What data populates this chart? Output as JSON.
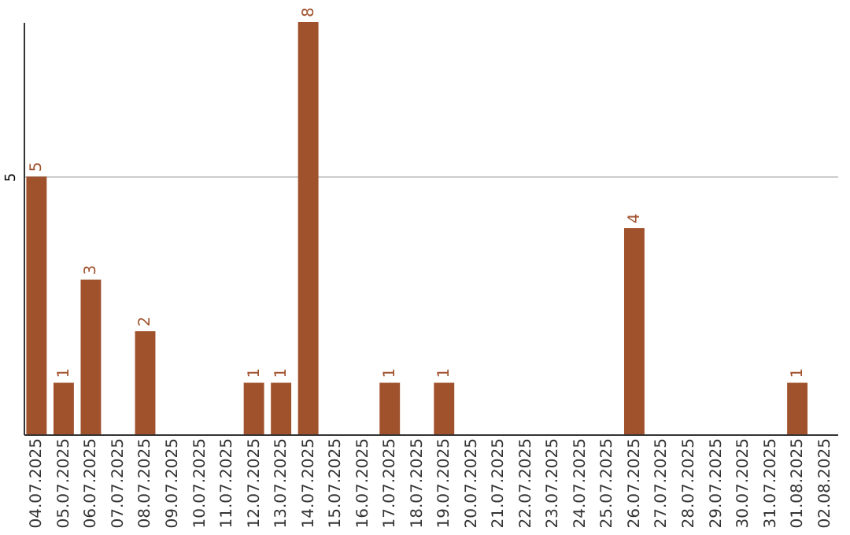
{
  "chart_data": {
    "type": "bar",
    "categories": [
      "04.07.2025",
      "05.07.2025",
      "06.07.2025",
      "07.07.2025",
      "08.07.2025",
      "09.07.2025",
      "10.07.2025",
      "11.07.2025",
      "12.07.2025",
      "13.07.2025",
      "14.07.2025",
      "15.07.2025",
      "16.07.2025",
      "17.07.2025",
      "18.07.2025",
      "19.07.2025",
      "20.07.2025",
      "21.07.2025",
      "22.07.2025",
      "23.07.2025",
      "24.07.2025",
      "25.07.2025",
      "26.07.2025",
      "27.07.2025",
      "28.07.2025",
      "29.07.2025",
      "30.07.2025",
      "31.07.2025",
      "01.08.2025",
      "02.08.2025"
    ],
    "values": [
      5,
      1,
      3,
      null,
      2,
      null,
      null,
      null,
      1,
      1,
      8,
      null,
      null,
      1,
      null,
      1,
      null,
      null,
      null,
      null,
      null,
      null,
      4,
      null,
      null,
      null,
      null,
      null,
      1,
      null
    ],
    "color": "#a0522d",
    "ylim": [
      0,
      8
    ],
    "yticks": [
      5
    ],
    "grid": "y",
    "data_labels": true
  }
}
